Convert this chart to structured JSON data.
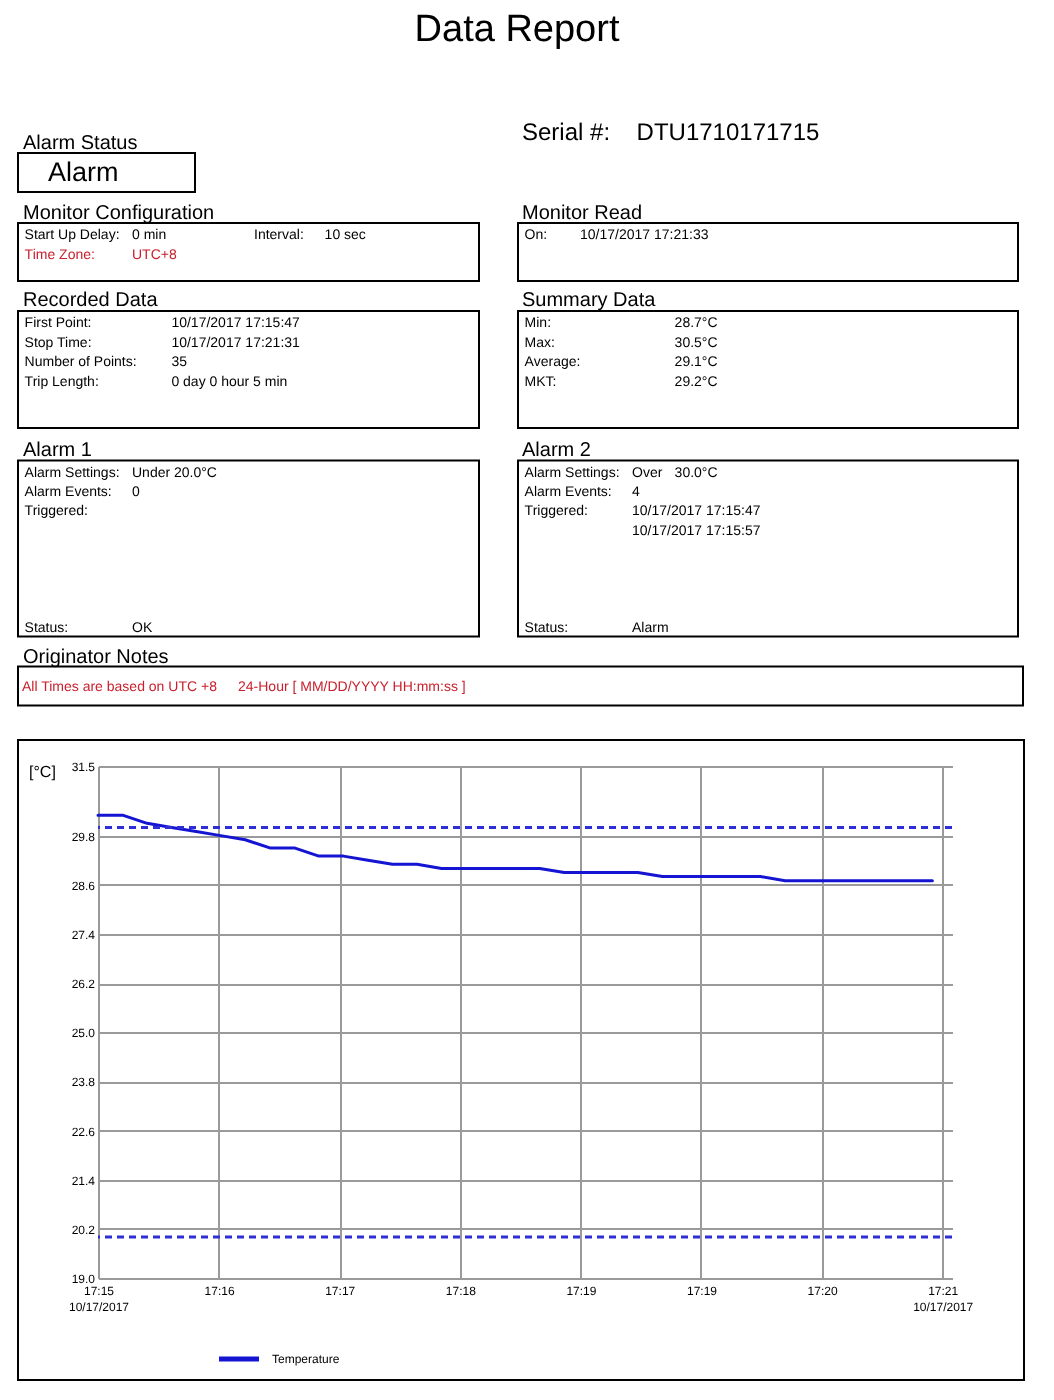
{
  "chart_data": [
    {
      "type": "other",
      "title": "Data Report",
      "annotations": [
        "Serial #:",
        "DTU1710171715"
      ]
    },
    {
      "type": "other",
      "title": "Alarm Status",
      "annotations": [
        "Alarm"
      ]
    },
    {
      "type": "other",
      "title": "Monitor Configuration",
      "annotations": [
        "Start Up Delay:",
        "0 min",
        "Interval:",
        "10 sec",
        "Time Zone:",
        "UTC+8"
      ],
      "colors": [
        "#000000",
        "#000000",
        "#000000",
        "#000000",
        "#c8202c",
        "#c8202c"
      ]
    },
    {
      "type": "other",
      "title": "Monitor Read",
      "annotations": [
        "On:",
        "10/17/2017 17:21:33"
      ]
    },
    {
      "type": "other",
      "title": "Recorded Data",
      "annotations": [
        "First Point:",
        "10/17/2017 17:15:47",
        "Stop Time:",
        "10/17/2017 17:21:31",
        "Number of Points:",
        "35",
        "Trip Length:",
        "0 day 0 hour 5 min"
      ]
    },
    {
      "type": "other",
      "title": "Summary Data",
      "annotations": [
        "Min:",
        "28.7°C",
        "Max:",
        "30.5°C",
        "Average:",
        "29.1°C",
        "MKT:",
        "29.2°C"
      ]
    },
    {
      "type": "other",
      "title": "Alarm 1",
      "annotations": [
        "Alarm Settings:",
        "Under 20.0°C",
        "Alarm Events:",
        "0",
        "Triggered:",
        "Status:",
        "OK"
      ]
    },
    {
      "type": "other",
      "title": "Alarm 2",
      "annotations": [
        "Alarm Settings:",
        "Over",
        "30.0°C",
        "Alarm Events:",
        "4",
        "Triggered:",
        "10/17/2017 17:15:47",
        "10/17/2017 17:15:57",
        "Status:",
        "Alarm"
      ]
    },
    {
      "type": "other",
      "title": "Originator Notes",
      "annotations": [
        "All Times are based on UTC +8",
        "24-Hour [ MM/DD/YYYY HH:mm:ss ]"
      ],
      "colors": [
        "#c8202c",
        "#c8202c"
      ]
    },
    {
      "type": "line",
      "ylabel": "[°C]",
      "x": [
        "2017-10-17T17:15:47",
        "2017-10-17T17:15:57",
        "2017-10-17T17:16:07",
        "2017-10-17T17:16:17",
        "2017-10-17T17:16:27",
        "2017-10-17T17:16:37",
        "2017-10-17T17:16:47",
        "2017-10-17T17:16:57",
        "2017-10-17T17:17:07",
        "2017-10-17T17:17:17",
        "2017-10-17T17:17:27",
        "2017-10-17T17:17:37",
        "2017-10-17T17:17:47",
        "2017-10-17T17:17:57",
        "2017-10-17T17:18:07",
        "2017-10-17T17:18:17",
        "2017-10-17T17:18:27",
        "2017-10-17T17:18:37",
        "2017-10-17T17:18:47",
        "2017-10-17T17:18:57",
        "2017-10-17T17:19:07",
        "2017-10-17T17:19:17",
        "2017-10-17T17:19:27",
        "2017-10-17T17:19:37",
        "2017-10-17T17:19:47",
        "2017-10-17T17:19:57",
        "2017-10-17T17:20:07",
        "2017-10-17T17:20:17",
        "2017-10-17T17:20:27",
        "2017-10-17T17:20:37",
        "2017-10-17T17:20:47",
        "2017-10-17T17:20:57",
        "2017-10-17T17:21:07",
        "2017-10-17T17:21:17",
        "2017-10-17T17:21:27"
      ],
      "series": [
        {
          "name": "Temperature",
          "color": "#1414d2",
          "values": [
            30.3,
            30.3,
            30.1,
            30.0,
            29.9,
            29.8,
            29.7,
            29.5,
            29.5,
            29.3,
            29.3,
            29.2,
            29.1,
            29.1,
            29.0,
            29.0,
            29.0,
            29.0,
            29.0,
            28.9,
            28.9,
            28.9,
            28.9,
            28.8,
            28.8,
            28.8,
            28.8,
            28.8,
            28.7,
            28.7,
            28.7,
            28.7,
            28.7,
            28.7,
            28.7
          ]
        }
      ],
      "xlim": [
        "2017-10-17T17:15:47",
        "2017-10-17T17:21:35"
      ],
      "xticks": [
        {
          "value": "2017-10-17T17:15:47",
          "label": "17:15\n10/17/2017"
        },
        {
          "value": "2017-10-17T17:16:36.143",
          "label": "17:16"
        },
        {
          "value": "2017-10-17T17:17:25.286",
          "label": "17:17"
        },
        {
          "value": "2017-10-17T17:18:14.429",
          "label": "17:18"
        },
        {
          "value": "2017-10-17T17:19:03.571",
          "label": "17:19"
        },
        {
          "value": "2017-10-17T17:19:52.714",
          "label": "17:19"
        },
        {
          "value": "2017-10-17T17:20:41.857",
          "label": "17:20"
        },
        {
          "value": "2017-10-17T17:21:31",
          "label": "17:21\n10/17/2017"
        }
      ],
      "ylim": [
        19.0,
        31.5
      ],
      "yticks": [
        {
          "value": 19.0,
          "label": "19.0"
        },
        20.2,
        21.4,
        22.6,
        23.8,
        {
          "value": 25.0,
          "label": "25.0"
        },
        26.2,
        27.4,
        28.6,
        29.8,
        31.5
      ],
      "ref_lines": [
        {
          "axis": "y",
          "value": 30.0,
          "color": "#2e2ed8",
          "line_style": "dashed"
        },
        {
          "axis": "y",
          "value": 20.0,
          "color": "#2e2ed8",
          "line_style": "dashed"
        }
      ],
      "grid": true,
      "legend": "bottom"
    }
  ]
}
